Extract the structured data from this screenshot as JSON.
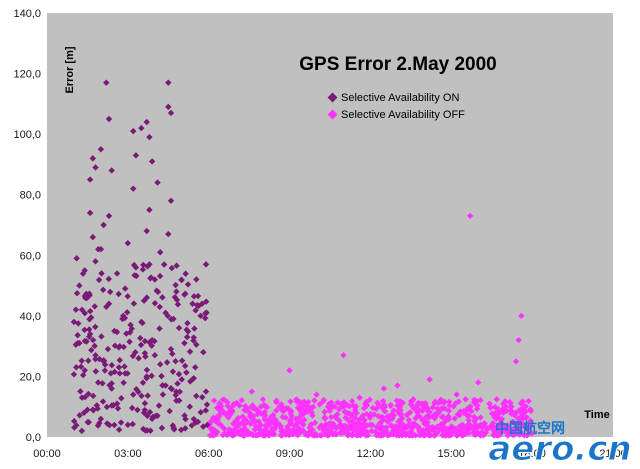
{
  "chart_data": {
    "type": "scatter",
    "title": "GPS Error 2.May 2000",
    "xlabel": "Time",
    "ylabel": "Error [m]",
    "ylim": [
      0,
      140
    ],
    "xlim": [
      0,
      21
    ],
    "grid": false,
    "legend_position": "top-right",
    "y_ticks": [
      "0,0",
      "20,0",
      "40,0",
      "60,0",
      "80,0",
      "100,0",
      "120,0",
      "140,0"
    ],
    "x_ticks": [
      "00:00",
      "03:00",
      "06:00",
      "09:00",
      "12:00",
      "15:00",
      "18:00",
      "21:00"
    ],
    "series": [
      {
        "name": "Selective Availability ON",
        "color": "#7a1a78",
        "x_range_hours": [
          1.0,
          6.0
        ],
        "points": [
          [
            2.2,
            117
          ],
          [
            4.5,
            117
          ],
          [
            2.3,
            105
          ],
          [
            4.5,
            109
          ],
          [
            4.6,
            107
          ],
          [
            3.7,
            104
          ],
          [
            3.5,
            102
          ],
          [
            3.2,
            101
          ],
          [
            3.8,
            99
          ],
          [
            2.0,
            95
          ],
          [
            3.3,
            93
          ],
          [
            1.7,
            92
          ],
          [
            3.9,
            91
          ],
          [
            1.8,
            89
          ],
          [
            2.4,
            88
          ],
          [
            4.1,
            84
          ],
          [
            1.6,
            85
          ],
          [
            3.2,
            82
          ],
          [
            4.6,
            78
          ],
          [
            3.8,
            75
          ],
          [
            1.6,
            74
          ],
          [
            2.3,
            73
          ],
          [
            2.1,
            70
          ],
          [
            3.7,
            68
          ],
          [
            4.5,
            67
          ],
          [
            1.7,
            66
          ],
          [
            3.0,
            64
          ],
          [
            2.0,
            62
          ],
          [
            4.2,
            61
          ],
          [
            1.1,
            59
          ],
          [
            1.8,
            58
          ],
          [
            3.3,
            56
          ],
          [
            5.9,
            57
          ],
          [
            1.4,
            55
          ],
          [
            2.6,
            54
          ],
          [
            4.0,
            52
          ],
          [
            1.2,
            50
          ],
          [
            2.9,
            49
          ],
          [
            4.8,
            48
          ],
          [
            5.1,
            47
          ],
          [
            1.5,
            46
          ],
          [
            3.6,
            45
          ],
          [
            5.4,
            44
          ],
          [
            2.2,
            43
          ],
          [
            1.3,
            42
          ],
          [
            4.4,
            41
          ],
          [
            5.7,
            40
          ],
          [
            2.8,
            39
          ],
          [
            1.0,
            38
          ],
          [
            3.1,
            37
          ],
          [
            4.9,
            36
          ],
          [
            2.5,
            35
          ],
          [
            1.6,
            34
          ],
          [
            5.2,
            33
          ],
          [
            3.9,
            32
          ],
          [
            1.2,
            31
          ],
          [
            2.7,
            30
          ],
          [
            4.6,
            29
          ],
          [
            5.8,
            28
          ],
          [
            1.8,
            27
          ],
          [
            3.4,
            26
          ],
          [
            2.1,
            25
          ],
          [
            4.2,
            24
          ],
          [
            5.5,
            23
          ],
          [
            1.4,
            22
          ],
          [
            2.9,
            21
          ],
          [
            3.7,
            20
          ],
          [
            5.0,
            19
          ],
          [
            1.9,
            18
          ],
          [
            4.4,
            17
          ],
          [
            2.4,
            16
          ],
          [
            5.9,
            15
          ],
          [
            3.2,
            14
          ],
          [
            1.3,
            13
          ],
          [
            4.8,
            12
          ],
          [
            2.6,
            11
          ],
          [
            5.3,
            10
          ],
          [
            1.7,
            9
          ],
          [
            3.6,
            8
          ],
          [
            4.1,
            7
          ],
          [
            2.0,
            6
          ],
          [
            5.6,
            5
          ],
          [
            3.0,
            4
          ],
          [
            4.7,
            3
          ],
          [
            1.5,
            9
          ],
          [
            2.3,
            44
          ],
          [
            3.5,
            38
          ],
          [
            4.0,
            27
          ],
          [
            5.1,
            31
          ],
          [
            1.9,
            62
          ],
          [
            3.8,
            57
          ],
          [
            2.7,
            21
          ],
          [
            4.3,
            14
          ],
          [
            5.4,
            19
          ],
          [
            3.9,
            6
          ]
        ]
      },
      {
        "name": "Selective Availability OFF",
        "color": "#ff33ff",
        "x_range_hours": [
          6.0,
          18.0
        ],
        "points": [
          [
            15.7,
            73
          ],
          [
            17.6,
            40
          ],
          [
            17.5,
            32
          ],
          [
            17.4,
            25
          ],
          [
            11.0,
            27
          ],
          [
            9.0,
            22
          ],
          [
            14.2,
            19
          ],
          [
            16.0,
            18
          ],
          [
            7.6,
            15
          ],
          [
            12.5,
            16
          ],
          [
            13.0,
            17
          ],
          [
            6.2,
            12
          ],
          [
            10.0,
            14
          ],
          [
            11.6,
            13
          ],
          [
            15.2,
            14
          ],
          [
            17.7,
            10
          ]
        ]
      }
    ]
  },
  "watermark": {
    "chinese": "中国航空网",
    "latin": "aero.cn"
  }
}
